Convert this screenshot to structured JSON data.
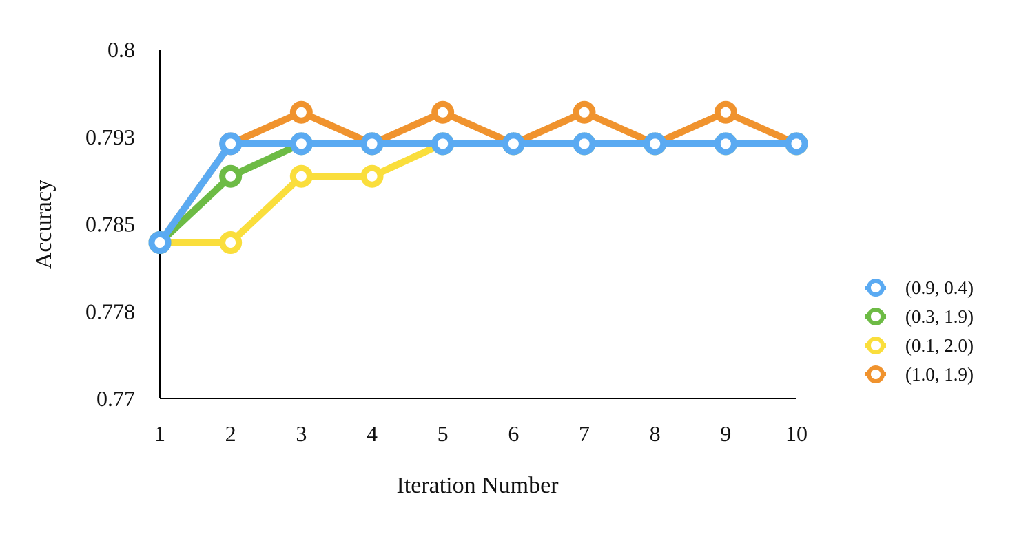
{
  "chart_data": {
    "type": "line",
    "title": "",
    "xlabel": "Iteration Number",
    "ylabel": "Accuracy",
    "x": [
      1,
      2,
      3,
      4,
      5,
      6,
      7,
      8,
      9,
      10
    ],
    "x_tick_labels": [
      "1",
      "2",
      "3",
      "4",
      "5",
      "6",
      "7",
      "8",
      "9",
      "10"
    ],
    "y_ticks": [
      0.77,
      0.7775,
      0.785,
      0.7925,
      0.8
    ],
    "y_tick_labels": [
      "0.77",
      "0.778",
      "0.785",
      "0.793",
      "0.8"
    ],
    "ylim": [
      0.77,
      0.8
    ],
    "grid": false,
    "legend_position": "right",
    "series": [
      {
        "name": "(1.0, 1.9)",
        "color": "#F0932E",
        "values": [
          0.7834,
          0.7919,
          0.7946,
          0.7919,
          0.7946,
          0.7919,
          0.7946,
          0.7919,
          0.7946,
          0.7919
        ]
      },
      {
        "name": "(0.1, 2.0)",
        "color": "#FADE3C",
        "values": [
          0.7834,
          0.7834,
          0.7891,
          0.7891,
          0.7919,
          0.7919,
          0.7919,
          0.7919,
          0.7919,
          0.7919
        ]
      },
      {
        "name": "(0.3, 1.9)",
        "color": "#6DBB45",
        "values": [
          0.7834,
          0.7891,
          0.7919,
          0.7919,
          0.7919,
          0.7919,
          0.7919,
          0.7919,
          0.7919,
          0.7919
        ]
      },
      {
        "name": "(0.9, 0.4)",
        "color": "#5AAAF2",
        "values": [
          0.7834,
          0.7919,
          0.7919,
          0.7919,
          0.7919,
          0.7919,
          0.7919,
          0.7919,
          0.7919,
          0.7919
        ]
      }
    ],
    "legend_order": [
      "(0.9, 0.4)",
      "(0.3, 1.9)",
      "(0.1, 2.0)",
      "(1.0, 1.9)"
    ]
  }
}
